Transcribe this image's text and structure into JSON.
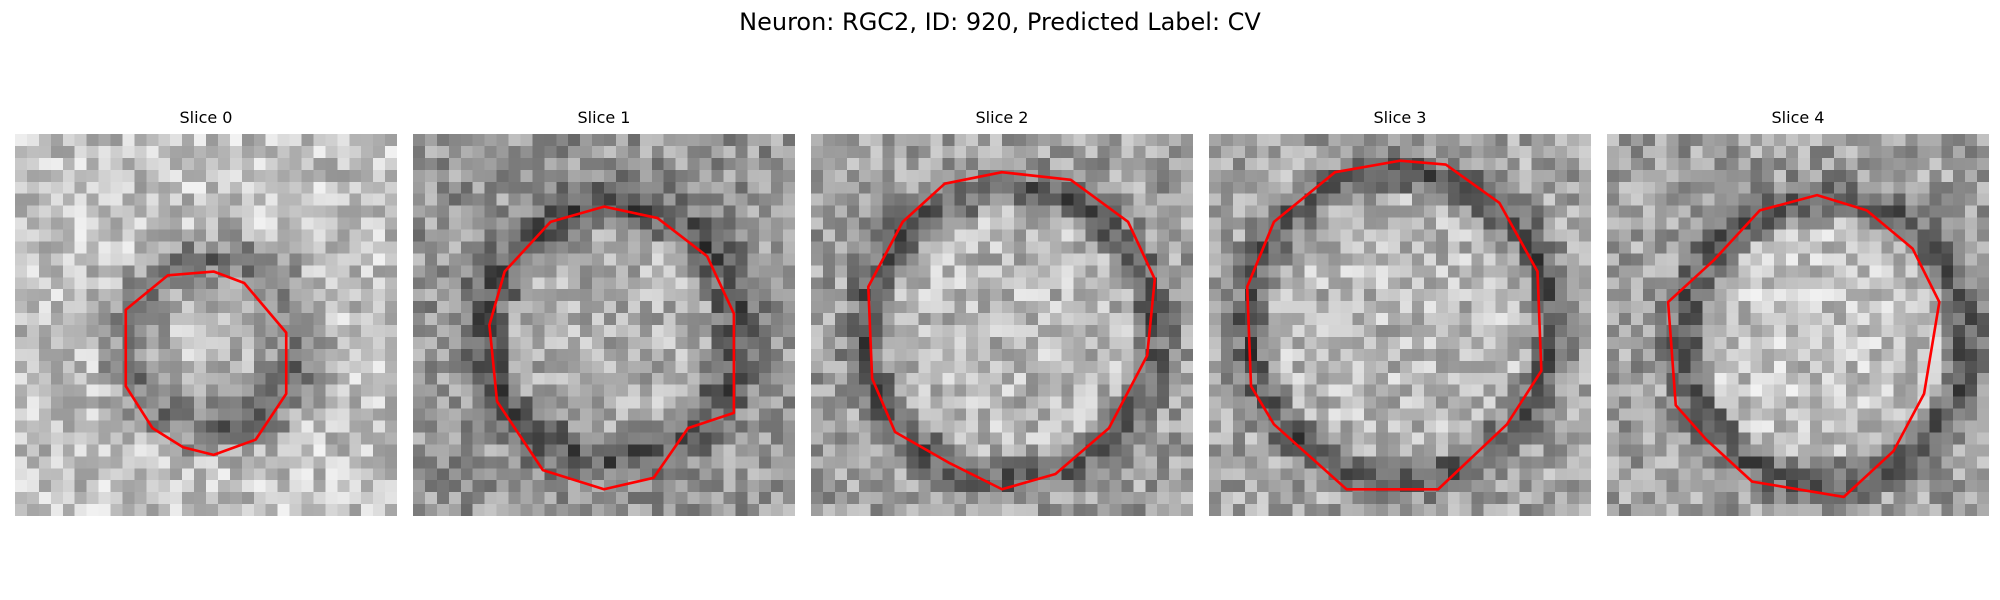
{
  "figure": {
    "title": "Neuron: RGC2, ID: 920, Predicted Label: CV",
    "contour_color": "#ff0000",
    "image_colormap": "gray",
    "slices": [
      {
        "title": "Slice 0"
      },
      {
        "title": "Slice 1"
      },
      {
        "title": "Slice 2"
      },
      {
        "title": "Slice 3"
      },
      {
        "title": "Slice 4"
      }
    ]
  }
}
